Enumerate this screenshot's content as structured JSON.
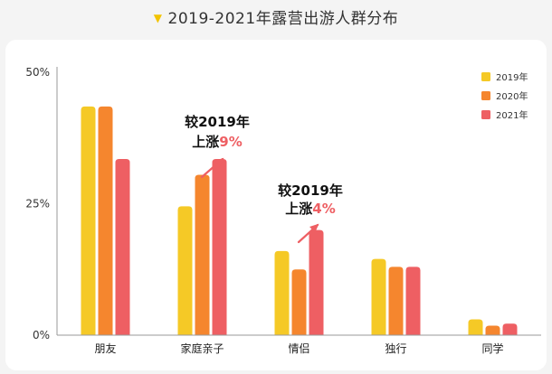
{
  "title": "2019-2021年露营出游人群分布",
  "title_marker_icon": "down-triangle-icon",
  "chart_data": {
    "type": "bar",
    "title": "2019-2021年露营出游人群分布",
    "xlabel": "",
    "ylabel": "",
    "ylim": [
      0,
      0.5
    ],
    "y_ticks": [
      {
        "value": 0,
        "label": "0%"
      },
      {
        "value": 0.25,
        "label": "25%"
      },
      {
        "value": 0.5,
        "label": "50%"
      }
    ],
    "categories": [
      "朋友",
      "家庭亲子",
      "情侣",
      "独行",
      "同学"
    ],
    "series": [
      {
        "name": "2019年",
        "color": "#f5c926",
        "values": [
          0.435,
          0.245,
          0.16,
          0.145,
          0.03
        ]
      },
      {
        "name": "2020年",
        "color": "#f5862e",
        "values": [
          0.435,
          0.305,
          0.125,
          0.13,
          0.018
        ]
      },
      {
        "name": "2021年",
        "color": "#ee5f63",
        "values": [
          0.335,
          0.335,
          0.2,
          0.13,
          0.022
        ]
      }
    ],
    "legend_position": "top-right",
    "grid": false,
    "annotations": [
      {
        "category": "家庭亲子",
        "line1": "较2019年",
        "line2_prefix": "上涨",
        "highlight": "9%",
        "highlight_color": "#ee5f63"
      },
      {
        "category": "情侣",
        "line1": "较2019年",
        "line2_prefix": "上涨",
        "highlight": "4%",
        "highlight_color": "#ee5f63"
      }
    ]
  }
}
